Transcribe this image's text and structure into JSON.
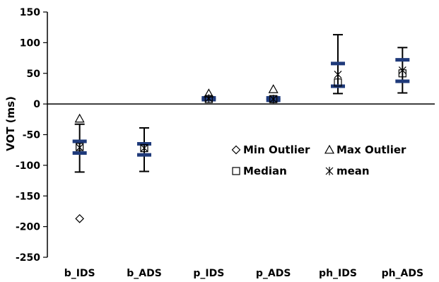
{
  "chart_data": {
    "type": "boxplot",
    "ylabel": "VOT (ms)",
    "ylim": [
      -250,
      150
    ],
    "ytick_step": 50,
    "categories": [
      "b_IDS",
      "b_ADS",
      "p_IDS",
      "p_ADS",
      "ph_IDS",
      "ph_ADS"
    ],
    "groups": [
      {
        "label": "b_IDS",
        "min": -111,
        "q1": -80,
        "median": -70,
        "mean": -71,
        "q3": -61,
        "max": -33,
        "min_outlier": -187,
        "max_outlier": -24
      },
      {
        "label": "b_ADS",
        "min": -110,
        "q1": -83,
        "median": -72,
        "mean": -72,
        "q3": -65,
        "max": -39,
        "min_outlier": null,
        "max_outlier": null
      },
      {
        "label": "p_IDS",
        "min": 6,
        "q1": 7,
        "median": 8,
        "mean": 9,
        "q3": 10,
        "max": 12,
        "min_outlier": null,
        "max_outlier": 17
      },
      {
        "label": "p_ADS",
        "min": 4,
        "q1": 6,
        "median": 8,
        "mean": 8,
        "q3": 10,
        "max": 12,
        "min_outlier": null,
        "max_outlier": 24
      },
      {
        "label": "ph_IDS",
        "min": 17,
        "q1": 29,
        "median": 35,
        "mean": 48,
        "q3": 66,
        "max": 113,
        "min_outlier": null,
        "max_outlier": null
      },
      {
        "label": "ph_ADS",
        "min": 18,
        "q1": 37,
        "median": 50,
        "mean": 55,
        "q3": 72,
        "max": 92,
        "min_outlier": null,
        "max_outlier": null
      }
    ],
    "legend": {
      "placement": "center-right",
      "min_outlier": "Min Outlier",
      "max_outlier": "Max Outlier",
      "median": "Median",
      "mean": "mean"
    },
    "colors": {
      "box": "#1f3a7a",
      "whisker": "#000000",
      "marker": "#000000"
    },
    "grid": false
  }
}
